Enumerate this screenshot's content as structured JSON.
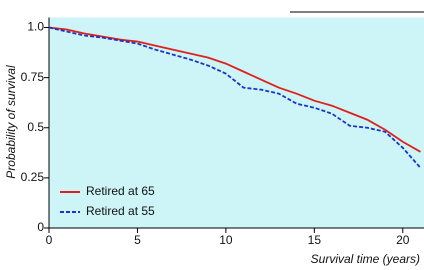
{
  "chart_data": {
    "type": "line",
    "x_label": "Survival time (years)",
    "y_label": "Probability of survival",
    "x": [
      0,
      1,
      2,
      3,
      4,
      5,
      6,
      7,
      8,
      9,
      10,
      11,
      12,
      13,
      14,
      15,
      16,
      17,
      18,
      19,
      20,
      21
    ],
    "series": [
      {
        "name": "Retired at 65",
        "color": "#e0201c",
        "dash": false,
        "values": [
          1.0,
          0.99,
          0.97,
          0.955,
          0.94,
          0.93,
          0.91,
          0.89,
          0.87,
          0.85,
          0.82,
          0.78,
          0.74,
          0.7,
          0.67,
          0.635,
          0.61,
          0.575,
          0.54,
          0.49,
          0.43,
          0.38
        ]
      },
      {
        "name": "Retired at 55",
        "color": "#1a35c8",
        "dash": true,
        "values": [
          1.0,
          0.98,
          0.96,
          0.95,
          0.935,
          0.92,
          0.89,
          0.865,
          0.84,
          0.81,
          0.77,
          0.7,
          0.69,
          0.67,
          0.62,
          0.6,
          0.57,
          0.51,
          0.5,
          0.48,
          0.4,
          0.3
        ]
      }
    ],
    "xlim": [
      0,
      21.2
    ],
    "ylim": [
      0,
      1.05
    ],
    "xticks": [
      0,
      5,
      10,
      15,
      20
    ],
    "yticks": [
      0,
      0.25,
      0.5,
      0.75,
      {
        "value": 1,
        "label": "1.0"
      }
    ],
    "background": "#cdf4f6"
  }
}
